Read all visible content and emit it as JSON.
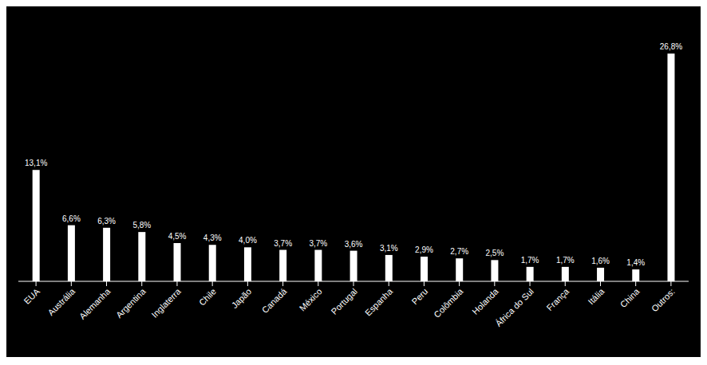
{
  "chart_data": {
    "type": "bar",
    "categories": [
      "EUA",
      "Austrália",
      "Alemanha",
      "Argentina",
      "Inglaterra",
      "Chile",
      "Japão",
      "Canadá",
      "México",
      "Portugal",
      "Espanha",
      "Peru",
      "Colômbia",
      "Holanda",
      "África do Sul",
      "França",
      "Itália",
      "China",
      "Outros:"
    ],
    "values": [
      13.1,
      6.6,
      6.3,
      5.8,
      4.5,
      4.3,
      4.0,
      3.7,
      3.7,
      3.6,
      3.1,
      2.9,
      2.7,
      2.5,
      1.7,
      1.7,
      1.6,
      1.4,
      26.8
    ],
    "value_labels": [
      "13,1%",
      "6,6%",
      "6,3%",
      "5,8%",
      "4,5%",
      "4,3%",
      "4,0%",
      "3,7%",
      "3,7%",
      "3,6%",
      "3,1%",
      "2,9%",
      "2,7%",
      "2,5%",
      "1,7%",
      "1,7%",
      "1,6%",
      "1,4%",
      "26,8%"
    ],
    "color": "#ffffff",
    "ylim": [
      0,
      30
    ],
    "data_labels": true,
    "tick_labels": "x"
  }
}
